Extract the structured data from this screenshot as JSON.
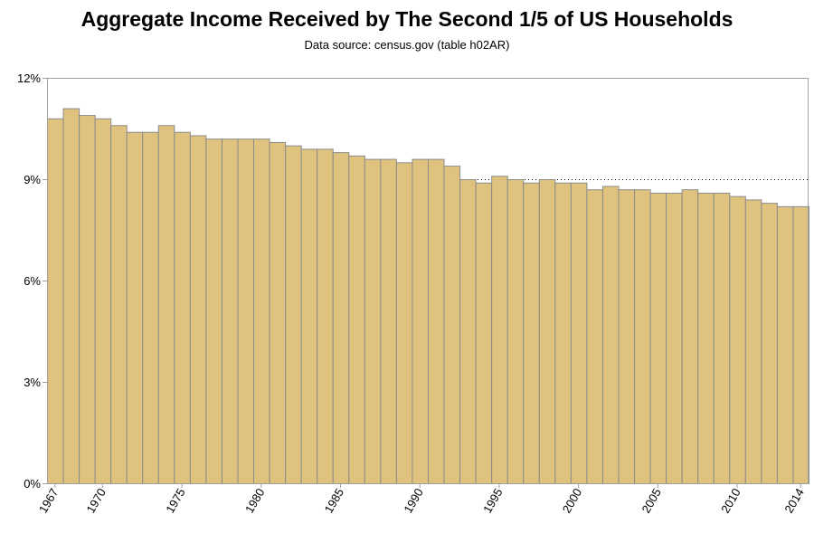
{
  "chart_data": {
    "type": "bar",
    "title": "Aggregate Income Received by The Second 1/5 of US Households",
    "subtitle": "Data source: census.gov (table h02AR)",
    "xlabel": "",
    "ylabel": "",
    "ylim": [
      0,
      12
    ],
    "yticks": [
      0,
      3,
      6,
      9,
      12
    ],
    "ytick_labels": [
      "0%",
      "3%",
      "6%",
      "9%",
      "12%"
    ],
    "xtick_labels": [
      "1967",
      "1970",
      "1975",
      "1980",
      "1985",
      "1990",
      "1995",
      "2000",
      "2005",
      "2010",
      "2014"
    ],
    "grid": "horizontal dotted",
    "bar_color": "#DFC27D",
    "bar_edge_color": "#8C8C8C",
    "categories": [
      1967,
      1968,
      1969,
      1970,
      1971,
      1972,
      1973,
      1974,
      1975,
      1976,
      1977,
      1978,
      1979,
      1980,
      1981,
      1982,
      1983,
      1984,
      1985,
      1986,
      1987,
      1988,
      1989,
      1990,
      1991,
      1992,
      1993,
      1994,
      1995,
      1996,
      1997,
      1998,
      1999,
      2000,
      2001,
      2002,
      2003,
      2004,
      2005,
      2006,
      2007,
      2008,
      2009,
      2010,
      2011,
      2012,
      2013,
      2014
    ],
    "values": [
      10.8,
      11.1,
      10.9,
      10.8,
      10.6,
      10.4,
      10.4,
      10.6,
      10.4,
      10.3,
      10.2,
      10.2,
      10.2,
      10.2,
      10.1,
      10.0,
      9.9,
      9.9,
      9.8,
      9.7,
      9.6,
      9.6,
      9.5,
      9.6,
      9.6,
      9.4,
      9.0,
      8.9,
      9.1,
      9.0,
      8.9,
      9.0,
      8.9,
      8.9,
      8.7,
      8.8,
      8.7,
      8.7,
      8.6,
      8.6,
      8.7,
      8.6,
      8.6,
      8.5,
      8.4,
      8.3,
      8.2,
      8.2
    ]
  }
}
